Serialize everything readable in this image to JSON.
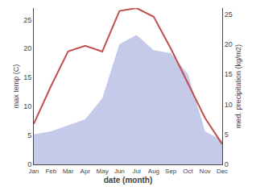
{
  "chart_data": {
    "type": "line",
    "xlabel": "date (month)",
    "ylabel": "max temp (C)",
    "y2label": "med. precipitation (kg/m2)",
    "categories": [
      "Jan",
      "Feb",
      "Mar",
      "Apr",
      "May",
      "Jun",
      "Jul",
      "Aug",
      "Sep",
      "Oct",
      "Nov",
      "Dec"
    ],
    "series": [
      {
        "type": "area",
        "color": "#c5cae9",
        "axis": "y2",
        "values": [
          5.0,
          5.5,
          6.5,
          7.5,
          11.0,
          20.0,
          21.5,
          19.0,
          18.5,
          15.0,
          5.5,
          4.0
        ]
      },
      {
        "type": "line",
        "color": "#c0504d",
        "values": [
          7.0,
          13.5,
          19.5,
          20.5,
          19.5,
          26.5,
          27.0,
          25.5,
          20.0,
          14.0,
          8.0,
          3.5
        ]
      }
    ],
    "ylim": [
      0,
      27
    ],
    "yticks": [
      0,
      5,
      10,
      15,
      20,
      25
    ],
    "y2lim": [
      0,
      26
    ],
    "y2ticks": [
      0,
      5,
      10,
      15,
      20,
      25
    ],
    "grid": false
  }
}
